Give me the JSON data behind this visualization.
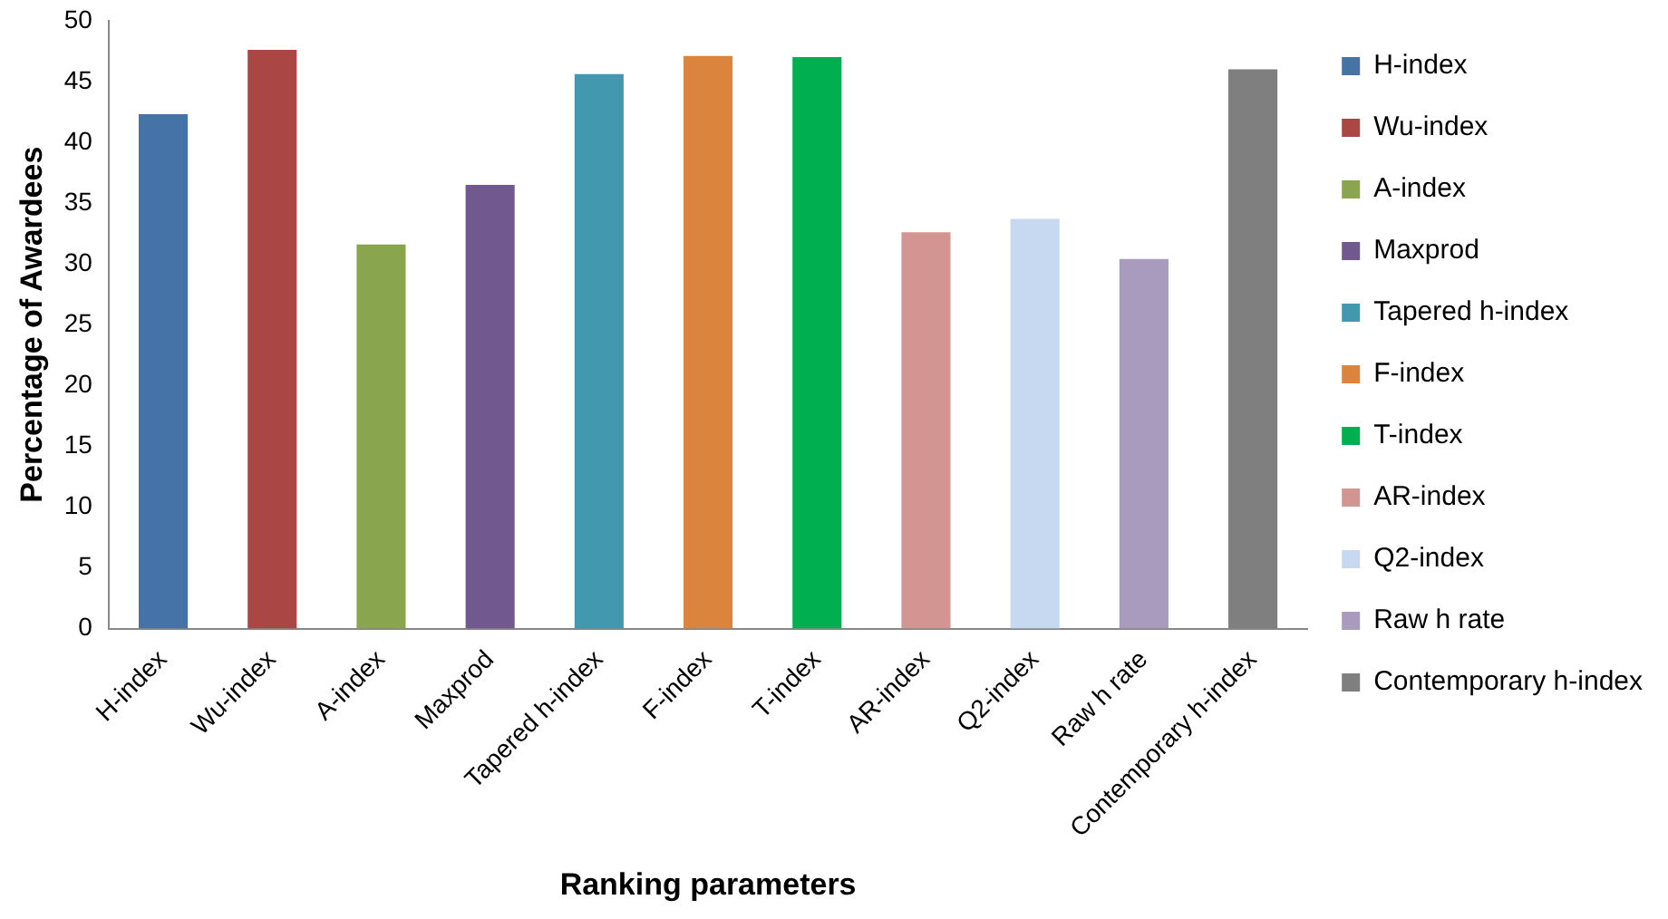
{
  "chart_data": {
    "type": "bar",
    "xlabel": "Ranking parameters",
    "ylabel": "Percentage of Awardees",
    "categories": [
      "H-index",
      "Wu-index",
      "A-index",
      "Maxprod",
      "Tapered h-index",
      "F-index",
      "T-index",
      "AR-index",
      "Q2-index",
      "Raw h rate",
      "Contemporary h-index"
    ],
    "series": [
      {
        "name": "H-index",
        "color": "#4572a7",
        "values": [
          42.3,
          null,
          null,
          null,
          null,
          null,
          null,
          null,
          null,
          null,
          null
        ]
      },
      {
        "name": "Wu-index",
        "color": "#aa4643",
        "values": [
          null,
          47.6,
          null,
          null,
          null,
          null,
          null,
          null,
          null,
          null,
          null
        ]
      },
      {
        "name": "A-index",
        "color": "#89a54e",
        "values": [
          null,
          null,
          31.6,
          null,
          null,
          null,
          null,
          null,
          null,
          null,
          null
        ]
      },
      {
        "name": "Maxprod",
        "color": "#71588f",
        "values": [
          null,
          null,
          null,
          36.5,
          null,
          null,
          null,
          null,
          null,
          null,
          null
        ]
      },
      {
        "name": "Tapered h-index",
        "color": "#4198af",
        "values": [
          null,
          null,
          null,
          null,
          45.6,
          null,
          null,
          null,
          null,
          null,
          null
        ]
      },
      {
        "name": "F-index",
        "color": "#db843d",
        "values": [
          null,
          null,
          null,
          null,
          null,
          47.1,
          null,
          null,
          null,
          null,
          null
        ]
      },
      {
        "name": "T-index",
        "color": "#00b050",
        "values": [
          null,
          null,
          null,
          null,
          null,
          null,
          47.0,
          null,
          null,
          null,
          null
        ]
      },
      {
        "name": "AR-index",
        "color": "#d39592",
        "values": [
          null,
          null,
          null,
          null,
          null,
          null,
          null,
          32.6,
          null,
          null,
          null
        ]
      },
      {
        "name": "Q2-index",
        "color": "#c6d9f1",
        "values": [
          null,
          null,
          null,
          null,
          null,
          null,
          null,
          null,
          33.7,
          null,
          null
        ]
      },
      {
        "name": "Raw h rate",
        "color": "#a99bbd",
        "values": [
          null,
          null,
          null,
          null,
          null,
          null,
          null,
          null,
          null,
          30.4,
          null
        ]
      },
      {
        "name": "Contemporary h-index",
        "color": "#7f7f7f",
        "values": [
          null,
          null,
          null,
          null,
          null,
          null,
          null,
          null,
          null,
          null,
          46.0
        ]
      }
    ],
    "ylim": [
      0,
      50
    ],
    "yticks": [
      0,
      5,
      10,
      15,
      20,
      25,
      30,
      35,
      40,
      45,
      50
    ],
    "grid": false,
    "legend": "right"
  }
}
